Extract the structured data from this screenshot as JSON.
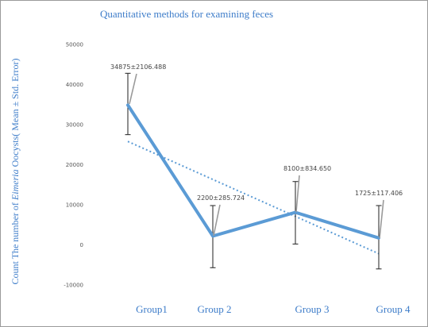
{
  "chart_data": {
    "type": "line",
    "title": "Quantitative methods for examining feces",
    "ylabel_prefix": "Count The number of ",
    "ylabel_italic": "Eimeria",
    "ylabel_suffix": " Oocysts( Mean ± Std. Error)",
    "xlabel": "",
    "categories": [
      "Group1",
      "Group 2",
      "Group 3",
      "Group 4"
    ],
    "ylim": [
      -10000,
      50000
    ],
    "yticks": [
      -10000,
      0,
      10000,
      20000,
      30000,
      40000,
      50000
    ],
    "ytick_labels": [
      "-10000",
      "0",
      "10000",
      "20000",
      "30000",
      "40000",
      "50000"
    ],
    "series": [
      {
        "values": [
          34875,
          2200,
          8100,
          1725
        ],
        "error_bars": [
          {
            "low": 27500,
            "high": 42800
          },
          {
            "low": -5700,
            "high": 9800
          },
          {
            "low": 200,
            "high": 15800
          },
          {
            "low": -6000,
            "high": 9800
          }
        ],
        "color": "#5b9bd5"
      }
    ],
    "trendline": {
      "style": "dotted",
      "color": "#5b9bd5",
      "start_value": 25800,
      "end_value": -2200
    },
    "data_labels": [
      "34875±2106.488",
      "2200±285.724",
      "8100±834.650",
      "1725±117.406"
    ],
    "grid": false,
    "legend": "none"
  }
}
